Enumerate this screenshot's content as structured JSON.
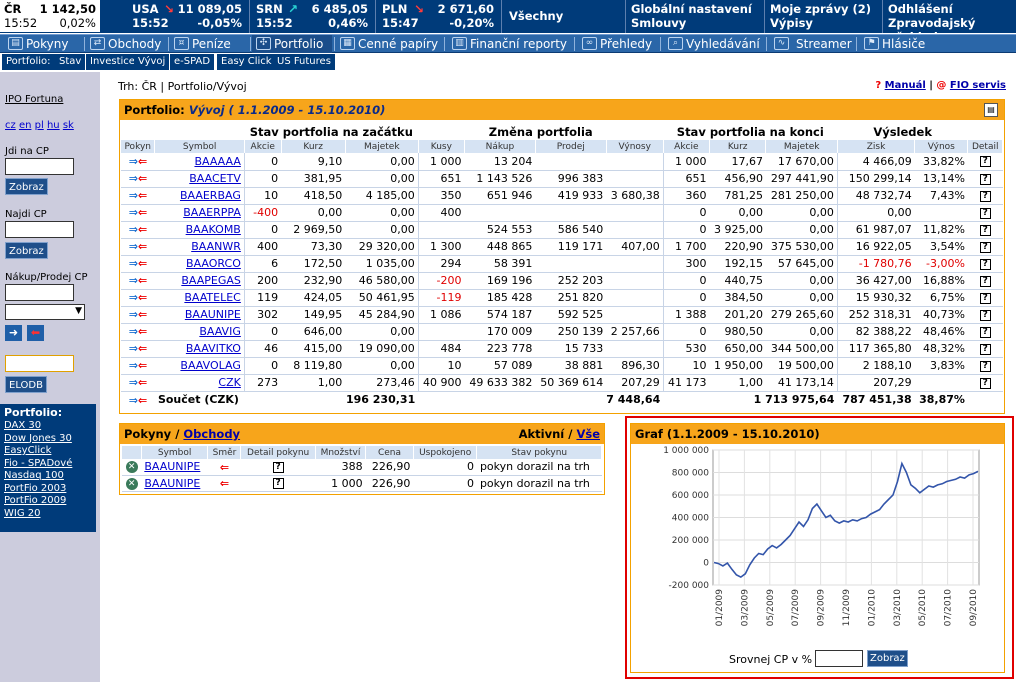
{
  "ticker": [
    {
      "name": "ČR",
      "value": "1 142,50",
      "time": "15:52",
      "change": "0,02%",
      "dir": "flat"
    },
    {
      "name": "USA",
      "value": "11 089,05",
      "time": "15:52",
      "change": "-0,05%",
      "dir": "down"
    },
    {
      "name": "SRN",
      "value": "6 485,05",
      "time": "15:52",
      "change": "0,46%",
      "dir": "up"
    },
    {
      "name": "PLN",
      "value": "2 671,60",
      "time": "15:47",
      "change": "-0,20%",
      "dir": "down"
    }
  ],
  "top_links": {
    "all": "Všechny",
    "global_1": "Globální nastavení",
    "global_2": "Smlouvy",
    "msgs_1": "Moje zprávy (2)",
    "msgs_2": "Výpisy",
    "logout_1": "Odhlášení",
    "logout_2": "Zpravodajský přehled"
  },
  "menu": [
    {
      "label": "Pokyny",
      "icon": "orders-icon"
    },
    {
      "label": "Obchody",
      "icon": "trades-icon"
    },
    {
      "label": "Peníze",
      "icon": "money-icon"
    },
    {
      "label": "Portfolio",
      "icon": "portfolio-icon",
      "active": true
    },
    {
      "label": "Cenné papíry",
      "icon": "securities-icon"
    },
    {
      "label": "Finanční reporty",
      "icon": "reports-icon"
    },
    {
      "label": "Přehledy",
      "icon": "overview-icon"
    },
    {
      "label": "Vyhledávání",
      "icon": "search-icon"
    },
    {
      "label": "Streamer",
      "icon": "streamer-icon"
    },
    {
      "label": "Hlásiče",
      "icon": "alerts-icon"
    }
  ],
  "submenu": [
    "Portfolio:",
    "Stav",
    "Investice",
    "Vývoj",
    "e-SPAD",
    "Easy Click",
    "US Futures"
  ],
  "left": {
    "ipo": "IPO Fortuna",
    "langs": [
      "cz",
      "en",
      "pl",
      "hu",
      "sk"
    ],
    "goto_label": "Jdi na CP",
    "show_btn": "Zobraz",
    "find_label": "Najdi CP",
    "find_btn": "Zobraz",
    "trade_label": "Nákup/Prodej CP",
    "elodb_btn": "ELODB",
    "pf_title": "Portfolio:",
    "pf_links": [
      "DAX 30",
      "Dow Jones 30",
      "EasyClick",
      "Fio - SPADové",
      "Nasdaq 100",
      "PortFio 2003",
      "PortFio 2009",
      "WIG 20"
    ]
  },
  "breadcrumb": "Trh: ČR | Portfolio/Vývoj",
  "help": {
    "q": "?",
    "manual": "Manuál",
    "sep": "|",
    "at": "@",
    "fio": "FIO servis"
  },
  "portfolio": {
    "title_prefix": "Portfolio:",
    "title_main": "Vývoj ( 1.1.2009 - 15.10.2010)",
    "groups": [
      "Stav portfolia na začátku",
      "Změna portfolia",
      "Stav portfolia na konci",
      "Výsledek"
    ],
    "cols": [
      "Pokyn",
      "Symbol",
      "Akcie",
      "Kurz",
      "Majetek",
      "Kusy",
      "Nákup",
      "Prodej",
      "Výnosy",
      "Akcie",
      "Kurz",
      "Majetek",
      "Zisk",
      "Výnos",
      "Detail"
    ],
    "rows": [
      [
        "BAAAAA",
        "0",
        "9,10",
        "0,00",
        "1 000",
        "13 204",
        "",
        "",
        "1 000",
        "17,67",
        "17 670,00",
        "4 466,09",
        "33,82%"
      ],
      [
        "BAACETV",
        "0",
        "381,95",
        "0,00",
        "651",
        "1 143 526",
        "996 383",
        "",
        "651",
        "456,90",
        "297 441,90",
        "150 299,14",
        "13,14%"
      ],
      [
        "BAAERBAG",
        "10",
        "418,50",
        "4 185,00",
        "350",
        "651 946",
        "419 933",
        "3 680,38",
        "360",
        "781,25",
        "281 250,00",
        "48 732,74",
        "7,43%"
      ],
      [
        "BAAERPPA",
        "-400",
        "0,00",
        "0,00",
        "400",
        "",
        "",
        "",
        "0",
        "0,00",
        "0,00",
        "0,00",
        ""
      ],
      [
        "BAAKOMB",
        "0",
        "2 969,50",
        "0,00",
        "",
        "524 553",
        "586 540",
        "",
        "0",
        "3 925,00",
        "0,00",
        "61 987,07",
        "11,82%"
      ],
      [
        "BAANWR",
        "400",
        "73,30",
        "29 320,00",
        "1 300",
        "448 865",
        "119 171",
        "407,00",
        "1 700",
        "220,90",
        "375 530,00",
        "16 922,05",
        "3,54%"
      ],
      [
        "BAAORCO",
        "6",
        "172,50",
        "1 035,00",
        "294",
        "58 391",
        "",
        "",
        "300",
        "192,15",
        "57 645,00",
        "-1 780,76",
        "-3,00%"
      ],
      [
        "BAAPEGAS",
        "200",
        "232,90",
        "46 580,00",
        "-200",
        "169 196",
        "252 203",
        "",
        "0",
        "440,75",
        "0,00",
        "36 427,00",
        "16,88%"
      ],
      [
        "BAATELEC",
        "119",
        "424,05",
        "50 461,95",
        "-119",
        "185 428",
        "251 820",
        "",
        "0",
        "384,50",
        "0,00",
        "15 930,32",
        "6,75%"
      ],
      [
        "BAAUNIPE",
        "302",
        "149,95",
        "45 284,90",
        "1 086",
        "574 187",
        "592 525",
        "",
        "1 388",
        "201,20",
        "279 265,60",
        "252 318,31",
        "40,73%"
      ],
      [
        "BAAVIG",
        "0",
        "646,00",
        "0,00",
        "",
        "170 009",
        "250 139",
        "2 257,66",
        "0",
        "980,50",
        "0,00",
        "82 388,22",
        "48,46%"
      ],
      [
        "BAAVITKO",
        "46",
        "415,00",
        "19 090,00",
        "484",
        "223 778",
        "15 733",
        "",
        "530",
        "650,00",
        "344 500,00",
        "117 365,80",
        "48,32%"
      ],
      [
        "BAAVOLAG",
        "0",
        "8 119,80",
        "0,00",
        "10",
        "57 089",
        "38 881",
        "896,30",
        "10",
        "1 950,00",
        "19 500,00",
        "2 188,10",
        "3,83%"
      ],
      [
        "CZK",
        "273",
        "1,00",
        "273,46",
        "40 900",
        "49 633 382",
        "50 369 614",
        "207,29",
        "41 173",
        "1,00",
        "41 173,14",
        "207,29",
        ""
      ]
    ],
    "sum": {
      "label": "Součet (CZK)",
      "majetek_start": "196 230,31",
      "vynosy": "7 448,64",
      "majetek_end": "1 713 975,64",
      "zisk": "787 451,38",
      "vynos": "38,87%"
    }
  },
  "orders": {
    "title_a": "Pokyny",
    "title_sep": "/",
    "title_b": "Obchody",
    "right_a": "Aktivní",
    "right_sep": "/",
    "right_b": "Vše",
    "cols": [
      "",
      "Symbol",
      "Směr",
      "Detail pokynu",
      "Množství",
      "Cena",
      "Uspokojeno",
      "Stav pokynu"
    ],
    "rows": [
      [
        "BAAUNIPE",
        "388",
        "226,90",
        "0",
        "pokyn dorazil na trh"
      ],
      [
        "BAAUNIPE",
        "1 000",
        "226,90",
        "0",
        "pokyn dorazil na trh"
      ]
    ]
  },
  "graph": {
    "title": "Graf (1.1.2009 - 15.10.2010)",
    "compare_label": "Srovnej CP v %",
    "compare_btn": "Zobraz"
  },
  "chart_data": {
    "type": "line",
    "title": "",
    "xlabel": "",
    "ylabel": "",
    "ylim": [
      -200000,
      1000000
    ],
    "yticks": [
      "1 000 000",
      "800 000",
      "600 000",
      "400 000",
      "200 000",
      "0",
      "-200 000"
    ],
    "xticks": [
      "01/2009",
      "03/2009",
      "05/2009",
      "07/2009",
      "09/2009",
      "11/2009",
      "01/2010",
      "03/2010",
      "05/2010",
      "07/2010",
      "09/2010"
    ],
    "series": [
      {
        "values": [
          0,
          -10000,
          -30000,
          -5000,
          -60000,
          -110000,
          -130000,
          -100000,
          -20000,
          40000,
          80000,
          70000,
          120000,
          150000,
          130000,
          160000,
          200000,
          240000,
          300000,
          360000,
          320000,
          380000,
          480000,
          520000,
          460000,
          400000,
          420000,
          370000,
          350000,
          370000,
          360000,
          380000,
          370000,
          390000,
          400000,
          430000,
          450000,
          470000,
          520000,
          560000,
          600000,
          720000,
          880000,
          800000,
          690000,
          660000,
          620000,
          650000,
          680000,
          670000,
          690000,
          700000,
          720000,
          730000,
          740000,
          760000,
          750000,
          780000,
          790000,
          810000
        ]
      }
    ],
    "color": "#3355aa"
  }
}
